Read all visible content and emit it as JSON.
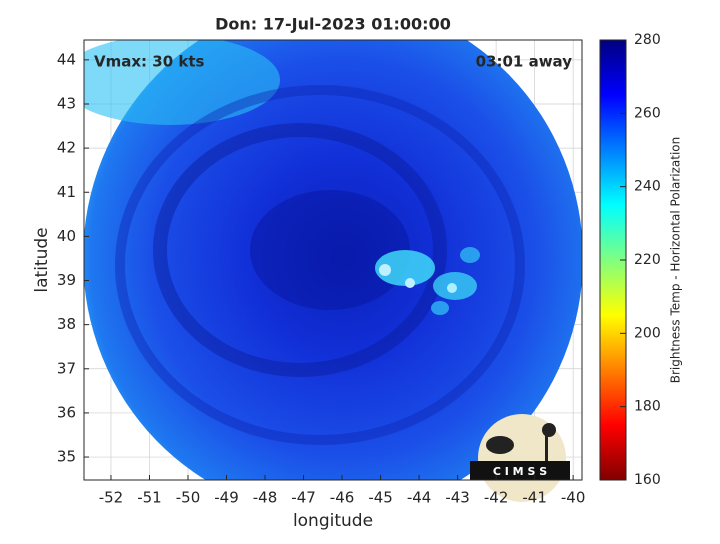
{
  "chart_data": {
    "type": "map",
    "title": "Don: 17-Jul-2023 01:00:00",
    "annotations": [
      "Vmax: 30 kts",
      "03:01 away"
    ],
    "x_label": "longitude",
    "y_label": "latitude",
    "xlim": [
      -52.7,
      -39.77
    ],
    "xticks": [
      -52,
      -51,
      -50,
      -49,
      -48,
      -47,
      -46,
      -45,
      -44,
      -43,
      -42,
      -41,
      -40
    ],
    "ylim": [
      34.48,
      44.45
    ],
    "yticks": [
      35,
      36,
      37,
      38,
      39,
      40,
      41,
      42,
      43,
      44
    ],
    "grid": true,
    "colorbar": {
      "label": "Brightness Temp - Horizontal Polarization",
      "lim": [
        160,
        280
      ],
      "ticks": [
        160,
        180,
        200,
        220,
        240,
        260,
        280
      ]
    },
    "logo": "C I M S S"
  }
}
